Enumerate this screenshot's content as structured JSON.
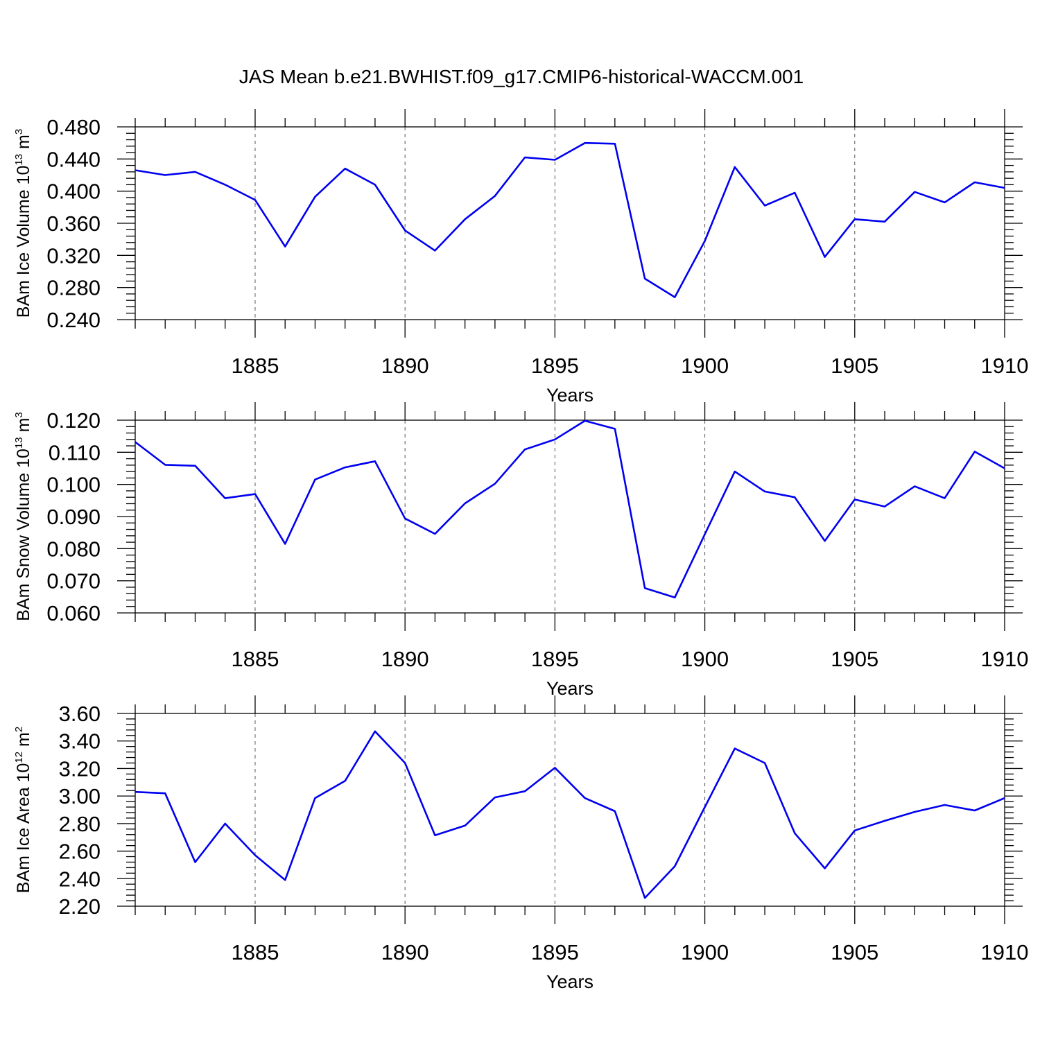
{
  "figure_title": "JAS Mean b.e21.BWHIST.f09_g17.CMIP6-historical-WACCM.001",
  "colors": {
    "series": "#0000f0",
    "axes": "#000000",
    "grid": "#555555"
  },
  "chart_data": [
    {
      "type": "line",
      "ylabel": {
        "prefix": "BAm Ice Volume 10",
        "exp": "13",
        "unit": " m",
        "unit_exp": "3"
      },
      "xlabel": "Years",
      "xlim": [
        1881,
        1910
      ],
      "ylim": [
        0.24,
        0.48
      ],
      "yticks": [
        "0.480",
        "0.440",
        "0.400",
        "0.360",
        "0.320",
        "0.280",
        "0.240"
      ],
      "ytick_values": [
        0.48,
        0.44,
        0.4,
        0.36,
        0.32,
        0.28,
        0.24
      ],
      "xticks": [
        "1885",
        "1890",
        "1895",
        "1900",
        "1905",
        "1910"
      ],
      "xtick_values": [
        1885,
        1890,
        1895,
        1900,
        1905,
        1910
      ],
      "x": [
        1881,
        1882,
        1883,
        1884,
        1885,
        1886,
        1887,
        1888,
        1889,
        1890,
        1891,
        1892,
        1893,
        1894,
        1895,
        1896,
        1897,
        1898,
        1899,
        1900,
        1901,
        1902,
        1903,
        1904,
        1905,
        1906,
        1907,
        1908,
        1909,
        1910
      ],
      "values": [
        0.426,
        0.42,
        0.424,
        0.408,
        0.389,
        0.331,
        0.393,
        0.428,
        0.408,
        0.351,
        0.326,
        0.365,
        0.394,
        0.442,
        0.439,
        0.46,
        0.459,
        0.291,
        0.268,
        0.338,
        0.43,
        0.382,
        0.398,
        0.318,
        0.365,
        0.362,
        0.399,
        0.386,
        0.411,
        0.404
      ]
    },
    {
      "type": "line",
      "ylabel": {
        "prefix": "BAm Snow Volume 10",
        "exp": "13",
        "unit": " m",
        "unit_exp": "3"
      },
      "xlabel": "Years",
      "xlim": [
        1881,
        1910
      ],
      "ylim": [
        0.06,
        0.12
      ],
      "yticks": [
        "0.120",
        "0.110",
        "0.100",
        "0.090",
        "0.080",
        "0.070",
        "0.060"
      ],
      "ytick_values": [
        0.12,
        0.11,
        0.1,
        0.09,
        0.08,
        0.07,
        0.06
      ],
      "xticks": [
        "1885",
        "1890",
        "1895",
        "1900",
        "1905",
        "1910"
      ],
      "xtick_values": [
        1885,
        1890,
        1895,
        1900,
        1905,
        1910
      ],
      "x": [
        1881,
        1882,
        1883,
        1884,
        1885,
        1886,
        1887,
        1888,
        1889,
        1890,
        1891,
        1892,
        1893,
        1894,
        1895,
        1896,
        1897,
        1898,
        1899,
        1900,
        1901,
        1902,
        1903,
        1904,
        1905,
        1906,
        1907,
        1908,
        1909,
        1910
      ],
      "values": [
        0.1132,
        0.1061,
        0.1058,
        0.0957,
        0.097,
        0.0815,
        0.1015,
        0.1053,
        0.1072,
        0.0894,
        0.0846,
        0.0941,
        0.1002,
        0.1109,
        0.114,
        0.1198,
        0.1173,
        0.0677,
        0.0648,
        0.0845,
        0.104,
        0.0978,
        0.096,
        0.0824,
        0.0953,
        0.0931,
        0.0994,
        0.0957,
        0.1102,
        0.105
      ]
    },
    {
      "type": "line",
      "ylabel": {
        "prefix": "BAm Ice Area 10",
        "exp": "12",
        "unit": " m",
        "unit_exp": "2"
      },
      "xlabel": "Years",
      "xlim": [
        1881,
        1910
      ],
      "ylim": [
        2.2,
        3.6
      ],
      "yticks": [
        "3.60",
        "3.40",
        "3.20",
        "3.00",
        "2.80",
        "2.60",
        "2.40",
        "2.20"
      ],
      "ytick_values": [
        3.6,
        3.4,
        3.2,
        3.0,
        2.8,
        2.6,
        2.4,
        2.2
      ],
      "xticks": [
        "1885",
        "1890",
        "1895",
        "1900",
        "1905",
        "1910"
      ],
      "xtick_values": [
        1885,
        1890,
        1895,
        1900,
        1905,
        1910
      ],
      "x": [
        1881,
        1882,
        1883,
        1884,
        1885,
        1886,
        1887,
        1888,
        1889,
        1890,
        1891,
        1892,
        1893,
        1894,
        1895,
        1896,
        1897,
        1898,
        1899,
        1900,
        1901,
        1902,
        1903,
        1904,
        1905,
        1906,
        1907,
        1908,
        1909,
        1910
      ],
      "values": [
        3.03,
        3.02,
        2.52,
        2.8,
        2.57,
        2.39,
        2.985,
        3.11,
        3.47,
        3.24,
        2.715,
        2.785,
        2.99,
        3.035,
        3.205,
        2.985,
        2.89,
        2.26,
        2.49,
        2.92,
        3.345,
        3.24,
        2.73,
        2.475,
        2.75,
        2.82,
        2.885,
        2.935,
        2.895,
        2.985
      ]
    }
  ]
}
